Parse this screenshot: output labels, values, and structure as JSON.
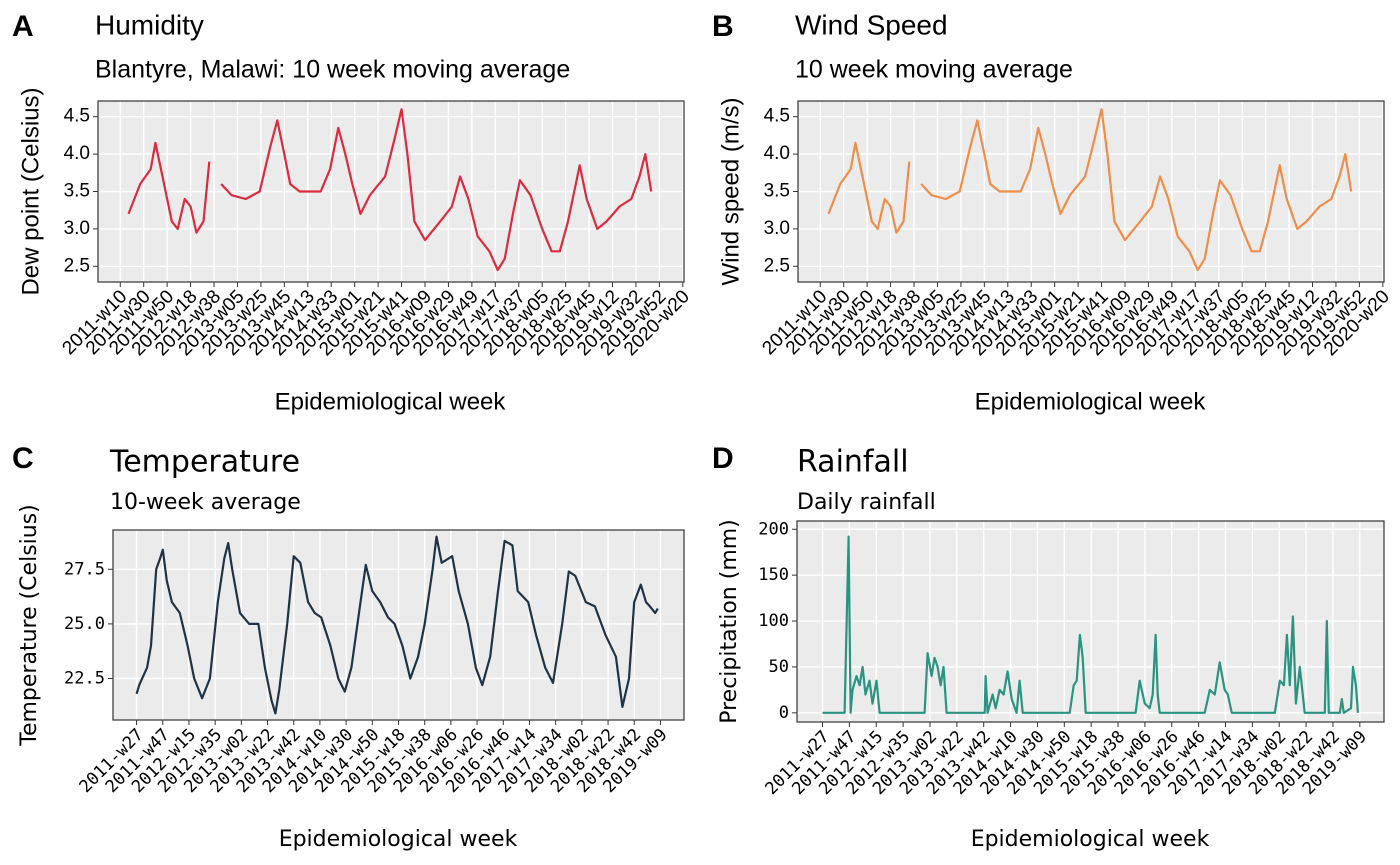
{
  "chart_data": [
    {
      "type": "line",
      "tag": "A",
      "title": "Humidity",
      "subtitle": "Blantyre, Malawi: 10 week moving average",
      "x_label": "Epidemiological week",
      "y_label": "Dew point (Celsius)",
      "color": "#dc2b3f",
      "x": [
        7,
        17,
        26,
        30,
        36,
        44,
        49,
        55,
        60,
        65,
        71,
        76,
        81,
        86,
        95,
        107,
        119,
        128,
        134,
        140,
        145,
        153,
        171,
        179,
        186,
        192,
        198,
        205,
        213,
        226,
        234,
        240,
        245,
        251,
        260,
        273,
        283,
        290,
        297,
        305,
        315,
        322,
        328,
        335,
        341,
        350,
        360,
        368,
        375,
        382,
        392,
        398,
        407,
        415,
        426,
        436,
        443,
        448,
        453
      ],
      "values": [
        3.2,
        3.6,
        3.8,
        4.15,
        3.7,
        3.1,
        3.0,
        3.4,
        3.3,
        2.95,
        3.1,
        3.9,
        null,
        3.6,
        3.45,
        3.4,
        3.5,
        4.1,
        4.45,
        4.0,
        3.6,
        3.5,
        3.5,
        3.8,
        4.35,
        4.0,
        3.6,
        3.2,
        3.45,
        3.7,
        4.2,
        4.6,
        4.0,
        3.1,
        2.85,
        3.1,
        3.3,
        3.7,
        3.4,
        2.9,
        2.7,
        2.45,
        2.6,
        3.2,
        3.65,
        3.45,
        3.0,
        2.7,
        2.7,
        3.1,
        3.85,
        3.4,
        3.0,
        3.1,
        3.3,
        3.4,
        3.7,
        4.0,
        3.5
      ],
      "xlim": [
        -19,
        481
      ],
      "xticks": [
        {
          "value": 0,
          "label": "2011-w10"
        },
        {
          "value": 20,
          "label": "2011-w30"
        },
        {
          "value": 40,
          "label": "2011-w50"
        },
        {
          "value": 60,
          "label": "2012-w18"
        },
        {
          "value": 80,
          "label": "2012-w38"
        },
        {
          "value": 100,
          "label": "2013-w05"
        },
        {
          "value": 120,
          "label": "2013-w25"
        },
        {
          "value": 140,
          "label": "2013-w45"
        },
        {
          "value": 160,
          "label": "2014-w13"
        },
        {
          "value": 180,
          "label": "2014-w33"
        },
        {
          "value": 200,
          "label": "2015-w01"
        },
        {
          "value": 220,
          "label": "2015-w21"
        },
        {
          "value": 240,
          "label": "2015-w41"
        },
        {
          "value": 260,
          "label": "2016-w09"
        },
        {
          "value": 280,
          "label": "2016-w29"
        },
        {
          "value": 300,
          "label": "2016-w49"
        },
        {
          "value": 320,
          "label": "2017-w17"
        },
        {
          "value": 340,
          "label": "2017-w37"
        },
        {
          "value": 360,
          "label": "2018-w05"
        },
        {
          "value": 380,
          "label": "2018-w25"
        },
        {
          "value": 400,
          "label": "2018-w45"
        },
        {
          "value": 420,
          "label": "2019-w12"
        },
        {
          "value": 440,
          "label": "2019-w32"
        },
        {
          "value": 460,
          "label": "2019-w52"
        },
        {
          "value": 480,
          "label": "2020-w20"
        }
      ],
      "ylim": [
        2.29,
        4.71
      ],
      "yticks": [
        2.5,
        {
          "value": 3,
          "label": "3.0"
        },
        3.5,
        {
          "value": 4,
          "label": "4.0"
        },
        4.5
      ],
      "grid": true
    },
    {
      "type": "line",
      "tag": "B",
      "title": "Wind Speed",
      "subtitle": "10 week moving average",
      "x_label": "Epidemiological week",
      "y_label": "Wind speed (m/s)",
      "color": "#ef8d4a",
      "x": [
        7,
        17,
        26,
        30,
        36,
        44,
        49,
        55,
        60,
        65,
        71,
        76,
        81,
        86,
        95,
        107,
        119,
        128,
        134,
        140,
        145,
        153,
        171,
        179,
        186,
        192,
        198,
        205,
        213,
        226,
        234,
        240,
        245,
        251,
        260,
        273,
        283,
        290,
        297,
        305,
        315,
        322,
        328,
        335,
        341,
        350,
        360,
        368,
        375,
        382,
        392,
        398,
        407,
        415,
        426,
        436,
        443,
        448,
        453
      ],
      "values": [
        3.2,
        3.6,
        3.8,
        4.15,
        3.7,
        3.1,
        3.0,
        3.4,
        3.3,
        2.95,
        3.1,
        3.9,
        null,
        3.6,
        3.45,
        3.4,
        3.5,
        4.1,
        4.45,
        4.0,
        3.6,
        3.5,
        3.5,
        3.8,
        4.35,
        4.0,
        3.6,
        3.2,
        3.45,
        3.7,
        4.2,
        4.6,
        4.0,
        3.1,
        2.85,
        3.1,
        3.3,
        3.7,
        3.4,
        2.9,
        2.7,
        2.45,
        2.6,
        3.2,
        3.65,
        3.45,
        3.0,
        2.7,
        2.7,
        3.1,
        3.85,
        3.4,
        3.0,
        3.1,
        3.3,
        3.4,
        3.7,
        4.0,
        3.5
      ],
      "xlim": [
        -19,
        481
      ],
      "xticks": [
        {
          "value": 0,
          "label": "2011-w10"
        },
        {
          "value": 20,
          "label": "2011-w30"
        },
        {
          "value": 40,
          "label": "2011-w50"
        },
        {
          "value": 60,
          "label": "2012-w18"
        },
        {
          "value": 80,
          "label": "2012-w38"
        },
        {
          "value": 100,
          "label": "2013-w05"
        },
        {
          "value": 120,
          "label": "2013-w25"
        },
        {
          "value": 140,
          "label": "2013-w45"
        },
        {
          "value": 160,
          "label": "2014-w13"
        },
        {
          "value": 180,
          "label": "2014-w33"
        },
        {
          "value": 200,
          "label": "2015-w01"
        },
        {
          "value": 220,
          "label": "2015-w21"
        },
        {
          "value": 240,
          "label": "2015-w41"
        },
        {
          "value": 260,
          "label": "2016-w09"
        },
        {
          "value": 280,
          "label": "2016-w29"
        },
        {
          "value": 300,
          "label": "2016-w49"
        },
        {
          "value": 320,
          "label": "2017-w17"
        },
        {
          "value": 340,
          "label": "2017-w37"
        },
        {
          "value": 360,
          "label": "2018-w05"
        },
        {
          "value": 380,
          "label": "2018-w25"
        },
        {
          "value": 400,
          "label": "2018-w45"
        },
        {
          "value": 420,
          "label": "2019-w12"
        },
        {
          "value": 440,
          "label": "2019-w32"
        },
        {
          "value": 460,
          "label": "2019-w52"
        },
        {
          "value": 480,
          "label": "2020-w20"
        }
      ],
      "ylim": [
        2.29,
        4.71
      ],
      "yticks": [
        2.5,
        {
          "value": 3,
          "label": "3.0"
        },
        3.5,
        {
          "value": 4,
          "label": "4.0"
        },
        4.5
      ],
      "grid": true
    },
    {
      "type": "line",
      "tag": "C",
      "title": "Temperature",
      "subtitle": "10-week average",
      "x_label": "Epidemiological week",
      "y_label": "Temperature (Celsius)",
      "color": "#1f3344",
      "x": [
        0,
        2,
        8,
        11,
        15,
        18,
        20,
        23,
        27,
        33,
        39,
        44,
        50,
        56,
        62,
        67,
        70,
        73,
        79,
        86,
        93,
        98,
        103,
        106,
        109,
        115,
        120,
        125,
        131,
        136,
        141,
        148,
        154,
        159,
        164,
        171,
        175,
        180,
        186,
        192,
        197,
        203,
        209,
        215,
        220,
        226,
        229,
        233,
        241,
        246,
        253,
        259,
        264,
        270,
        276,
        281,
        287,
        291,
        299,
        305,
        312,
        318,
        325,
        330,
        335,
        343,
        350,
        358,
        366,
        371,
        376,
        380,
        385,
        389,
        392,
        396,
        398
      ],
      "values": [
        21.8,
        22.2,
        23.0,
        24.0,
        27.5,
        28.0,
        28.4,
        27.0,
        26.0,
        25.5,
        24.0,
        22.5,
        21.6,
        22.5,
        26.0,
        28.0,
        28.7,
        27.5,
        25.5,
        25.0,
        25.0,
        23.0,
        21.5,
        20.9,
        22.0,
        25.0,
        28.1,
        27.8,
        26.0,
        25.5,
        25.3,
        24.0,
        22.5,
        21.9,
        23.0,
        26.0,
        27.7,
        26.5,
        26.0,
        25.3,
        25.0,
        24.0,
        22.5,
        23.5,
        25.0,
        27.5,
        29.0,
        27.8,
        28.1,
        26.5,
        25.0,
        23.0,
        22.2,
        23.5,
        26.5,
        28.8,
        28.6,
        26.5,
        26.0,
        24.5,
        23.0,
        22.3,
        25.0,
        27.4,
        27.2,
        26.0,
        25.8,
        24.5,
        23.5,
        21.2,
        22.5,
        26.0,
        26.8,
        26.0,
        25.8,
        25.5,
        25.7
      ],
      "xlim": [
        -18,
        418
      ],
      "xticks": [
        {
          "value": 0,
          "label": "2011-w27"
        },
        {
          "value": 20,
          "label": "2011-w47"
        },
        {
          "value": 40,
          "label": "2012-w15"
        },
        {
          "value": 60,
          "label": "2012-w35"
        },
        {
          "value": 80,
          "label": "2013-w02"
        },
        {
          "value": 100,
          "label": "2013-w22"
        },
        {
          "value": 120,
          "label": "2013-w42"
        },
        {
          "value": 140,
          "label": "2014-w10"
        },
        {
          "value": 160,
          "label": "2014-w30"
        },
        {
          "value": 180,
          "label": "2014-w50"
        },
        {
          "value": 200,
          "label": "2015-w18"
        },
        {
          "value": 220,
          "label": "2015-w38"
        },
        {
          "value": 240,
          "label": "2016-w06"
        },
        {
          "value": 260,
          "label": "2016-w26"
        },
        {
          "value": 280,
          "label": "2016-w46"
        },
        {
          "value": 300,
          "label": "2017-w14"
        },
        {
          "value": 320,
          "label": "2017-w34"
        },
        {
          "value": 340,
          "label": "2018-w02"
        },
        {
          "value": 360,
          "label": "2018-w22"
        },
        {
          "value": 380,
          "label": "2018-w42"
        },
        {
          "value": 400,
          "label": "2019-w09"
        }
      ],
      "ylim": [
        20.6,
        29.3
      ],
      "yticks": [
        22.5,
        {
          "value": 25,
          "label": "25.0"
        },
        27.5
      ],
      "grid": true
    },
    {
      "type": "line",
      "tag": "D",
      "title": "Rainfall",
      "subtitle": "Daily rainfall",
      "x_label": "Epidemiological week",
      "y_label": "Precipitation (mm)",
      "color": "#2a9480",
      "x": [
        0,
        16.4,
        19.4,
        20.9,
        22.3,
        25.3,
        27.6,
        29.8,
        32.0,
        35.0,
        37.2,
        40.2,
        42.5,
        76.0,
        78.2,
        81.2,
        83.4,
        85.7,
        87.9,
        90.1,
        92.4,
        120.7,
        121.4,
        122.9,
        126.6,
        128.9,
        131.8,
        134.8,
        137.8,
        140.8,
        144.5,
        146.7,
        149.0,
        184.0,
        187.0,
        189.2,
        191.6,
        193.7,
        195.9,
        233.1,
        236.1,
        239.9,
        243.6,
        245.8,
        248.0,
        249.5,
        251.0,
        284.5,
        288.3,
        292.0,
        295.7,
        299.4,
        301.7,
        304.7,
        336.7,
        340.5,
        343.5,
        345.7,
        347.9,
        350.2,
        352.4,
        355.3,
        359.0,
        373.9,
        375.4,
        376.9,
        385.1,
        386.6,
        388.1,
        393.4,
        394.9,
        397.1,
        398.6
      ],
      "values": [
        0,
        0,
        192,
        0,
        25,
        40,
        30,
        50,
        20,
        35,
        10,
        35,
        0,
        0,
        65,
        40,
        60,
        50,
        30,
        50,
        0,
        0,
        40,
        0,
        20,
        5,
        25,
        20,
        45,
        15,
        0,
        35,
        0,
        0,
        30,
        35,
        85,
        60,
        0,
        0,
        35,
        10,
        5,
        20,
        85,
        20,
        0,
        0,
        25,
        20,
        55,
        25,
        20,
        0,
        0,
        35,
        30,
        85,
        30,
        105,
        10,
        50,
        0,
        0,
        100,
        0,
        0,
        15,
        0,
        5,
        50,
        30,
        0
      ],
      "xlim": [
        -19,
        418
      ],
      "xticks": [
        {
          "value": 0,
          "label": "2011-w27"
        },
        {
          "value": 20,
          "label": "2011-w47"
        },
        {
          "value": 40,
          "label": "2012-w15"
        },
        {
          "value": 60,
          "label": "2012-w35"
        },
        {
          "value": 80,
          "label": "2013-w02"
        },
        {
          "value": 100,
          "label": "2013-w22"
        },
        {
          "value": 120,
          "label": "2013-w42"
        },
        {
          "value": 140,
          "label": "2014-w10"
        },
        {
          "value": 160,
          "label": "2014-w30"
        },
        {
          "value": 180,
          "label": "2014-w50"
        },
        {
          "value": 200,
          "label": "2015-w18"
        },
        {
          "value": 220,
          "label": "2015-w38"
        },
        {
          "value": 240,
          "label": "2016-w06"
        },
        {
          "value": 260,
          "label": "2016-w26"
        },
        {
          "value": 280,
          "label": "2016-w46"
        },
        {
          "value": 300,
          "label": "2017-w14"
        },
        {
          "value": 320,
          "label": "2017-w34"
        },
        {
          "value": 340,
          "label": "2018-w02"
        },
        {
          "value": 360,
          "label": "2018-w22"
        },
        {
          "value": 380,
          "label": "2018-w42"
        },
        {
          "value": 400,
          "label": "2019-w09"
        }
      ],
      "ylim": [
        -10,
        209
      ],
      "yticks": [
        0,
        50,
        100,
        150,
        200
      ],
      "grid": true
    }
  ]
}
